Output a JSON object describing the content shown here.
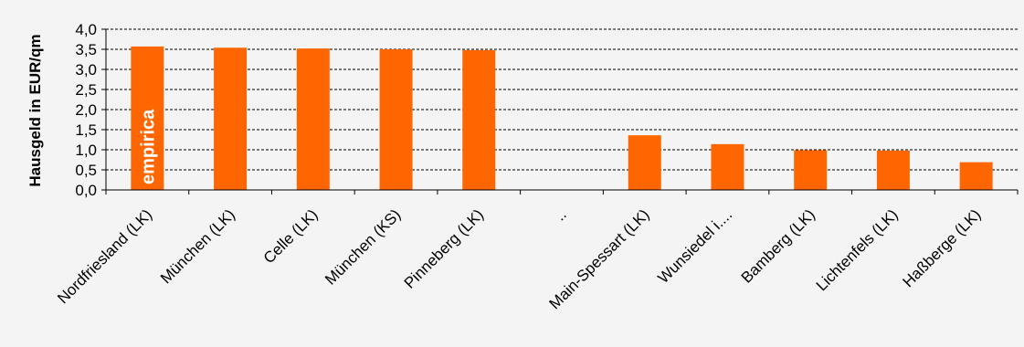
{
  "chart_data": {
    "type": "bar",
    "ylabel": "Hausgeld in EUR/qm",
    "ylim": [
      0,
      4
    ],
    "ytick_step": 0.5,
    "ytick_labels": [
      "0,0",
      "0,5",
      "1,0",
      "1,5",
      "2,0",
      "2,5",
      "3,0",
      "3,5",
      "4,0"
    ],
    "grid": true,
    "bar_color": "#ff6600",
    "categories": [
      "Nordfriesland (LK)",
      "München (LK)",
      "Celle (LK)",
      "München (KS)",
      "Pinneberg (LK)",
      "..",
      "Main-Spessart (LK)",
      "Wunsiedel i....",
      "Bamberg (LK)",
      "Lichtenfels (LK)",
      "Haßberge (LK)"
    ],
    "values": [
      3.57,
      3.54,
      3.52,
      3.5,
      3.48,
      null,
      1.36,
      1.14,
      0.99,
      0.98,
      0.69
    ],
    "watermark": "empirica"
  }
}
